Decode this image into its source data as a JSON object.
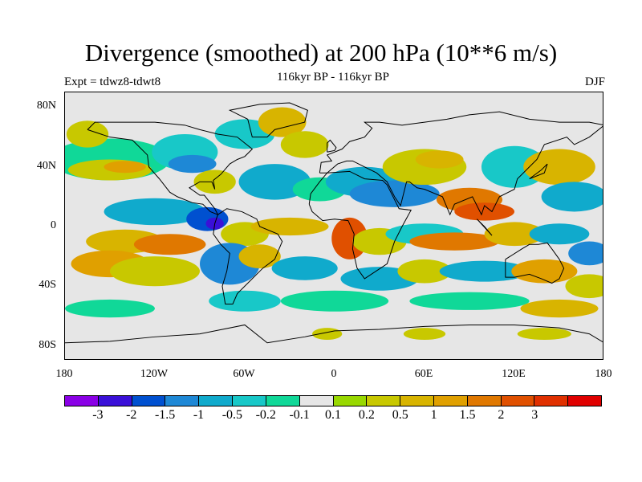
{
  "title": "Divergence (smoothed) at 200 hPa (10**6 m/s)",
  "subtitle": "116kyr BP - 116kyr BP",
  "expt_label": "Expt = tdwz8-tdwt8",
  "season": "DJF",
  "y_ticks": [
    "80N",
    "40N",
    "0",
    "40S",
    "80S"
  ],
  "x_ticks": [
    "180",
    "120W",
    "60W",
    "0",
    "60E",
    "120E",
    "180"
  ],
  "colorbar": {
    "colors": [
      "#8a00e6",
      "#3a10d8",
      "#0050d0",
      "#1e88d6",
      "#10aacc",
      "#18c8c8",
      "#10d898",
      "#e6e6e6",
      "#98d800",
      "#c8c800",
      "#d8b400",
      "#e0a000",
      "#e07800",
      "#e05000",
      "#e03000",
      "#e00000"
    ],
    "labels": [
      "-3",
      "-2",
      "-1.5",
      "-1",
      "-0.5",
      "-0.2",
      "-0.1",
      "0.1",
      "0.2",
      "0.5",
      "1",
      "1.5",
      "2",
      "3"
    ]
  },
  "chart_data": {
    "type": "heatmap",
    "xlim": [
      -180,
      180
    ],
    "ylim": [
      -90,
      90
    ],
    "title": "Divergence (smoothed) at 200 hPa (10**6 m/s)",
    "subtitle": "116kyr BP - 116kyr BP",
    "levels": [
      -3,
      -2,
      -1.5,
      -1,
      -0.5,
      -0.2,
      -0.1,
      0.1,
      0.2,
      0.5,
      1,
      1.5,
      2,
      3
    ]
  }
}
